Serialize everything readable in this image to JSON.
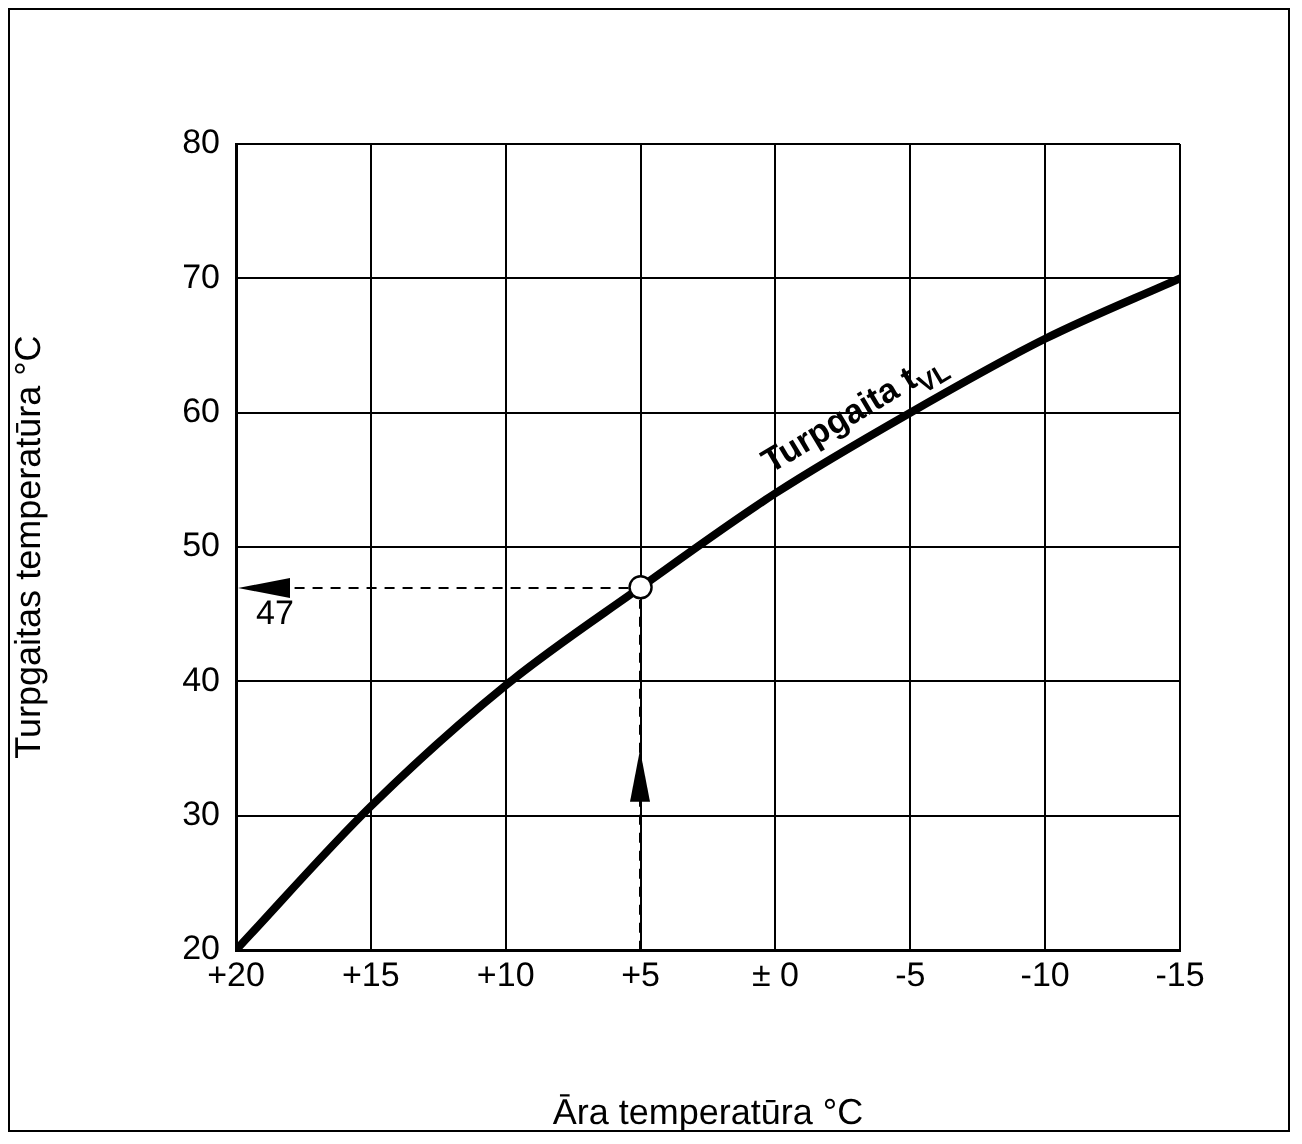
{
  "chart_data": {
    "type": "line",
    "xlabel": "Āra temperatūra °C",
    "ylabel": "Turpgaitas temperatūra °C",
    "x": [
      20,
      15,
      10,
      5,
      0,
      -5,
      -10,
      -15
    ],
    "series": [
      {
        "name": "Turpgaita t$_{VL}$",
        "color": "#000000",
        "values": [
          20,
          30.7,
          39.7,
          47,
          54,
          60,
          65.5,
          70
        ]
      }
    ],
    "xlim": [
      20,
      -15
    ],
    "ylim": [
      20,
      80
    ],
    "xticks": [
      {
        "value": 20,
        "label": "+20"
      },
      {
        "value": 15,
        "label": "+15"
      },
      {
        "value": 10,
        "label": "+10"
      },
      {
        "value": 5,
        "label": "+5"
      },
      {
        "value": 0,
        "label": "± 0"
      },
      -5,
      -10,
      -15
    ],
    "yticks": [
      20,
      30,
      40,
      50,
      60,
      70,
      80
    ],
    "annotations": [
      {
        "text": "47",
        "x": 5,
        "y": 47
      }
    ],
    "grid": true,
    "marker": "none",
    "line_style": "solid",
    "legend": false
  }
}
